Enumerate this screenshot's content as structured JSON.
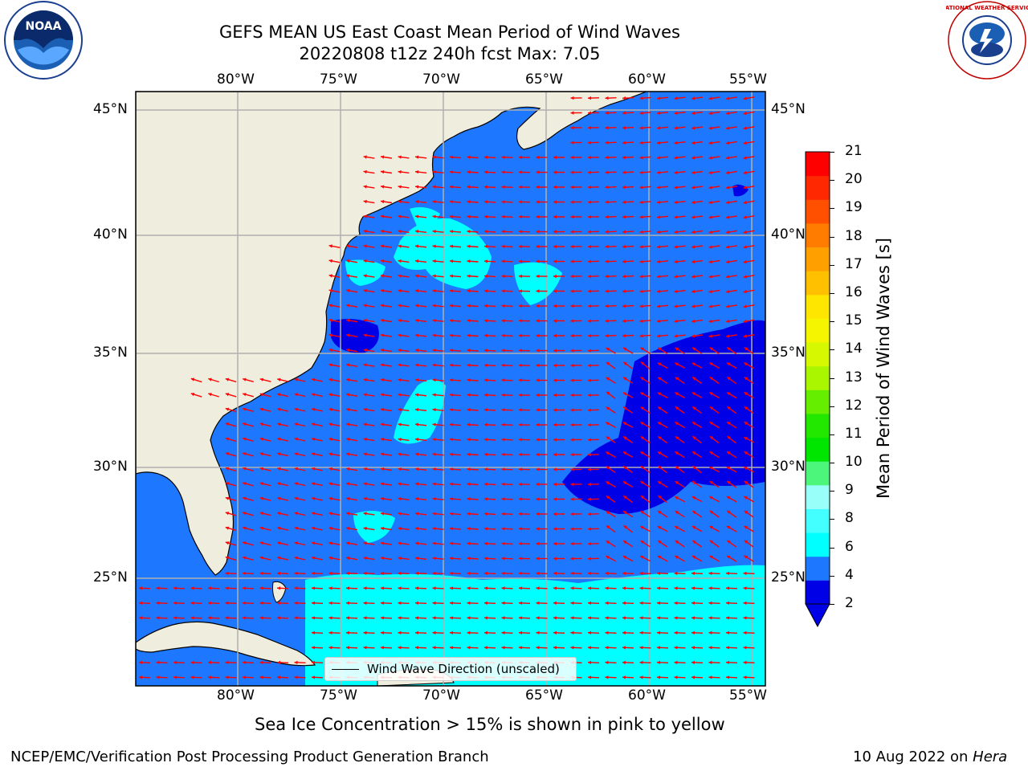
{
  "title": {
    "line1": "GEFS MEAN US East Coast Mean Period of Wind Waves",
    "line2": "20220808 t12z 240h fcst   Max: 7.05"
  },
  "logos": {
    "noaa_text": "NOAA",
    "nws_text": "NATIONAL WEATHER SERVICE"
  },
  "axes": {
    "lon_labels": [
      "80°W",
      "75°W",
      "70°W",
      "65°W",
      "60°W",
      "55°W"
    ],
    "lat_labels": [
      "45°N",
      "40°N",
      "35°N",
      "30°N",
      "25°N"
    ]
  },
  "colorbar": {
    "label": "Mean Period of Wind Waves [s]",
    "ticks": [
      "21",
      "20",
      "19",
      "18",
      "17",
      "16",
      "15",
      "14",
      "13",
      "12",
      "11",
      "10",
      "9",
      "8",
      "6",
      "4",
      "2"
    ],
    "colors": [
      "#0000e6",
      "#1e78ff",
      "#00ffff",
      "#44ffff",
      "#99fff9",
      "#4cf67a",
      "#00e600",
      "#22e800",
      "#66ee00",
      "#aaf500",
      "#d6f800",
      "#f5f500",
      "#ffe600",
      "#ffc000",
      "#ffa000",
      "#ff7c00",
      "#ff5000",
      "#ff2800",
      "#ff0000"
    ]
  },
  "legend": {
    "label": "Wind Wave Direction (unscaled)"
  },
  "colors": {
    "land": "#efedde",
    "ocean_main": "#1e78ff",
    "ocean_high": "#00ffff",
    "ocean_mid": "#44ffff",
    "ocean_low": "#0000e6",
    "arrow": "#ff0000"
  },
  "notes": {
    "sea_ice": "Sea Ice Concentration > 15% is shown in pink to yellow"
  },
  "footer": {
    "left": "NCEP/EMC/Verification Post Processing Product Generation Branch",
    "right_date": "10 Aug 2022 on ",
    "right_machine": "Hera"
  }
}
